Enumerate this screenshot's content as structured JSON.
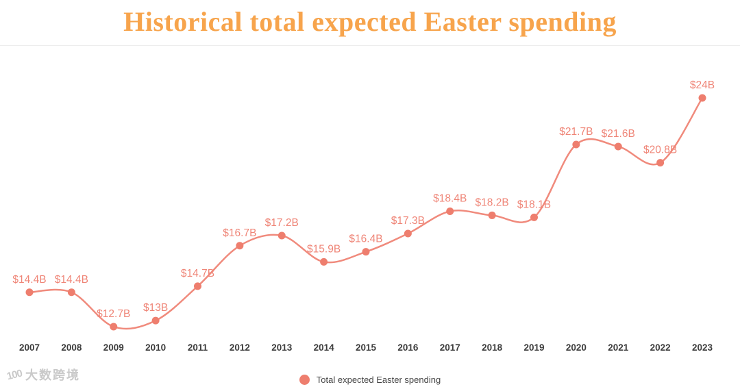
{
  "title": "Historical total expected Easter spending",
  "colors": {
    "title": "#f7a44c",
    "line": "#f08a7c",
    "dot": "#ee7e6e",
    "point_label": "#ef8577",
    "axis_label": "#3d3d3d",
    "legend_text": "#444444",
    "watermark": "#c9c9c9"
  },
  "legend": {
    "label": "Total expected Easter spending"
  },
  "watermark": {
    "logo": "100",
    "text": "大数跨境"
  },
  "chart_data": {
    "type": "line",
    "title": "Historical total expected Easter spending",
    "categories": [
      "2007",
      "2008",
      "2009",
      "2010",
      "2011",
      "2012",
      "2013",
      "2014",
      "2015",
      "2016",
      "2017",
      "2018",
      "2019",
      "2020",
      "2021",
      "2022",
      "2023"
    ],
    "series": [
      {
        "name": "Total expected Easter spending",
        "values": [
          14.4,
          14.4,
          12.7,
          13,
          14.7,
          16.7,
          17.2,
          15.9,
          16.4,
          17.3,
          18.4,
          18.2,
          18.1,
          21.7,
          21.6,
          20.8,
          24
        ],
        "labels": [
          "$14.4B",
          "$14.4B",
          "$12.7B",
          "$13B",
          "$14.7B",
          "$16.7B",
          "$17.2B",
          "$15.9B",
          "$16.4B",
          "$17.3B",
          "$18.4B",
          "$18.2B",
          "$18.1B",
          "$21.7B",
          "$21.6B",
          "$20.8B",
          "$24B"
        ]
      }
    ],
    "xlabel": "",
    "ylabel": "",
    "ylim": [
      12,
      25
    ],
    "grid": false,
    "legend_position": "bottom"
  }
}
